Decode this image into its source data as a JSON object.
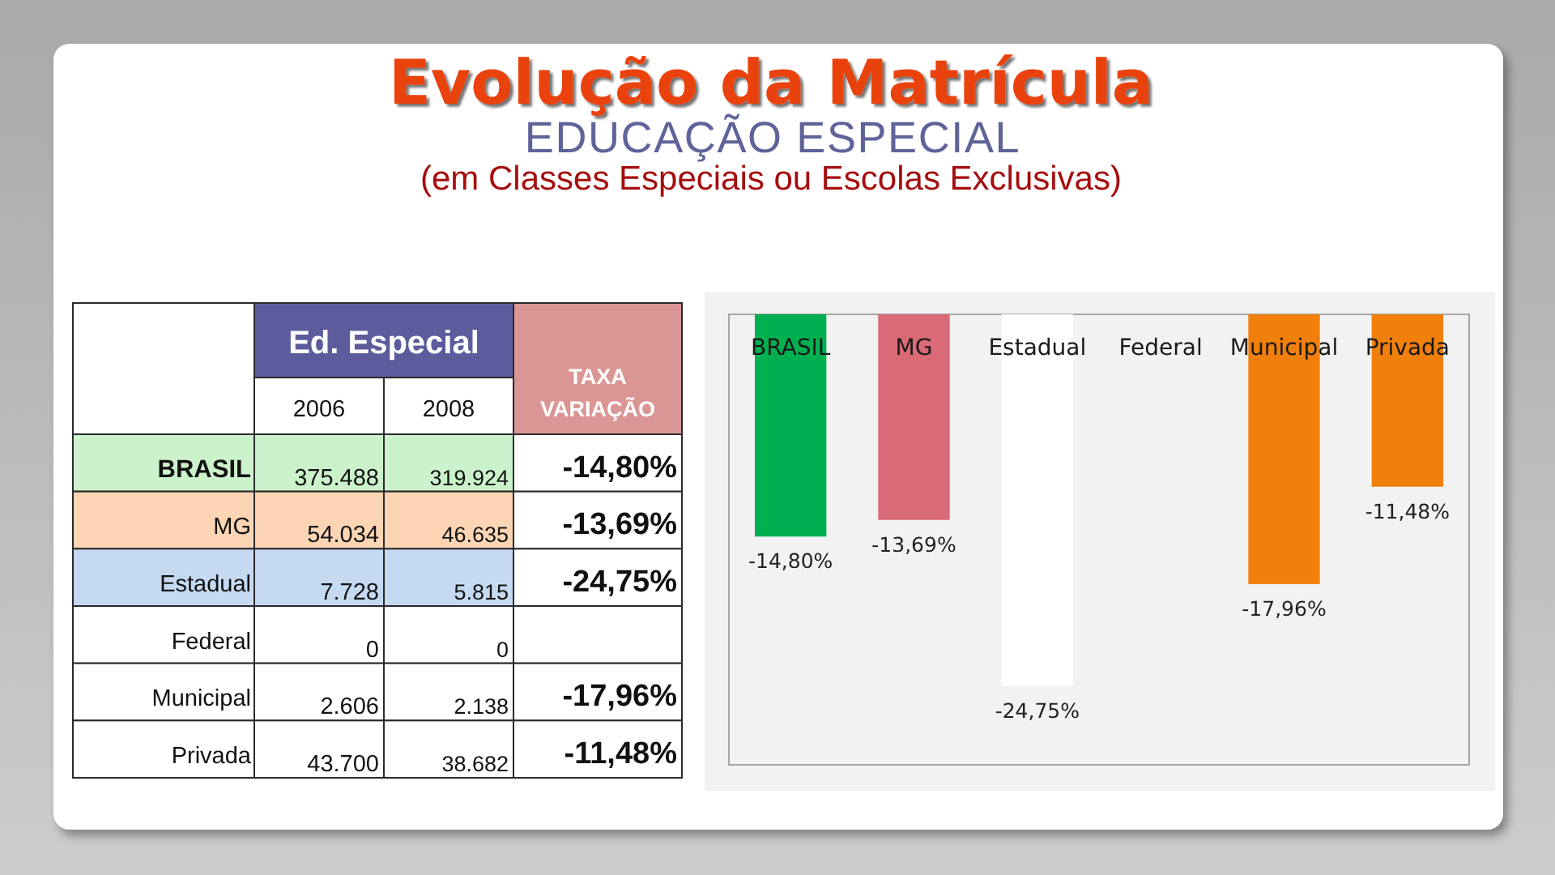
{
  "chart_data": [
    {
      "type": "heatmap",
      "title": "Evolução da Matrícula",
      "subtitle": "EDUCAÇÃO ESPECIAL",
      "annotations": [
        "(em Classes Especiais ou Escolas Exclusivas)"
      ],
      "xlabel": "Ed. Especial",
      "categories": [
        "2006",
        "2008",
        "TAXA VARIAÇÃO"
      ],
      "y_categories": [
        "BRASIL",
        "MG",
        "Estadual",
        "Federal",
        "Municipal",
        "Privada"
      ],
      "cells": [
        [
          375488,
          319924,
          -14.8
        ],
        [
          54034,
          46635,
          -13.69
        ],
        [
          7728,
          5815,
          -24.75
        ],
        [
          0,
          0,
          null
        ],
        [
          2606,
          2138,
          -17.96
        ],
        [
          43700,
          38682,
          -11.48
        ]
      ],
      "cell_labels": [
        [
          "375.488",
          "319.924",
          "-14,80%"
        ],
        [
          "54.034",
          "46.635",
          "-13,69%"
        ],
        [
          "7.728",
          "5.815",
          "-24,75%"
        ],
        [
          "0",
          "0",
          null
        ],
        [
          "2.606",
          "2.138",
          "-17,96%"
        ],
        [
          "43.700",
          "38.682",
          "-11,48%"
        ]
      ],
      "colors": [
        [
          "#ccf2cc",
          "#ccf2cc",
          "#ffffff"
        ],
        [
          "#fcd5b4",
          "#fcd5b4",
          "#ffffff"
        ],
        [
          "#c5d9f1",
          "#c5d9f1",
          "#ffffff"
        ],
        [
          "#ffffff",
          "#ffffff",
          "#ffffff"
        ],
        [
          "#ffffff",
          "#ffffff",
          "#ffffff"
        ],
        [
          "#ffffff",
          "#ffffff",
          "#ffffff"
        ]
      ]
    },
    {
      "type": "bar",
      "categories": [
        "BRASIL",
        "MG",
        "Estadual",
        "Federal",
        "Municipal",
        "Privada"
      ],
      "values": [
        -14.8,
        -13.69,
        -24.75,
        null,
        -17.96,
        -11.48
      ],
      "value_labels": [
        "-14,80%",
        "-13,69%",
        "-24,75%",
        null,
        "-17,96%",
        "-11,48%"
      ],
      "colors": [
        "#00b050",
        "#d96a76",
        "#ffffff",
        null,
        "#f07f0c",
        "#f07f0c"
      ],
      "ylim": [
        -30,
        0
      ],
      "tick_labels": "x"
    }
  ]
}
